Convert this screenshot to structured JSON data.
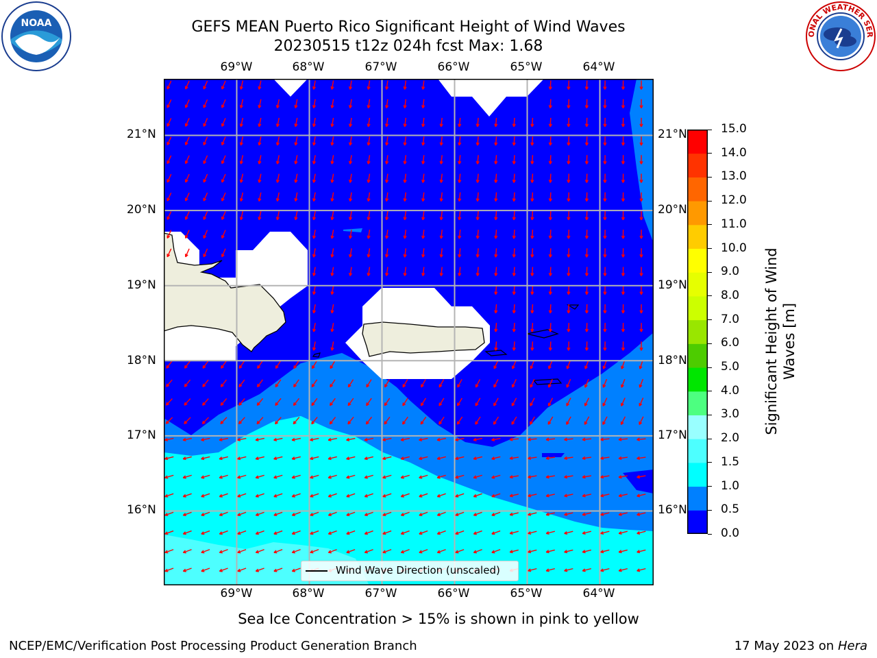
{
  "header": {
    "title_line1": "GEFS MEAN Puerto Rico Significant Height of Wind Waves",
    "title_line2": "20230515 t12z 024h fcst   Max: 1.68"
  },
  "logos": {
    "noaa_text": "NOAA",
    "nws_text": "NATIONAL WEATHER SERVICE"
  },
  "map": {
    "lon_labels": [
      "69°W",
      "68°W",
      "67°W",
      "66°W",
      "65°W",
      "64°W"
    ],
    "lat_labels": [
      "21°N",
      "20°N",
      "19°N",
      "18°N",
      "17°N",
      "16°N"
    ],
    "legend_label": "Wind Wave Direction (unscaled)",
    "colors": {
      "ocean_low": "#0000ff",
      "band_0_5": "#0080ff",
      "band_1_0": "#00ffff",
      "band_1_5": "#4dffff",
      "land": "#eeeedd",
      "arrow": "#ff0000",
      "grid": "#b4b4b4"
    }
  },
  "colorbar": {
    "label": "Significant Height of Wind Waves [m]",
    "ticks": [
      "0.0",
      "0.5",
      "1.0",
      "1.5",
      "2.0",
      "3.0",
      "4.0",
      "5.0",
      "6.0",
      "7.0",
      "8.0",
      "9.0",
      "10.0",
      "11.0",
      "12.0",
      "13.0",
      "14.0",
      "15.0"
    ],
    "colors": [
      "#0000ff",
      "#0080ff",
      "#00ffff",
      "#4dffff",
      "#99ffff",
      "#4dff80",
      "#00e600",
      "#4dcc00",
      "#99e600",
      "#ccff00",
      "#e6ff00",
      "#ffff00",
      "#ffcc00",
      "#ff9900",
      "#ff6600",
      "#ff3300",
      "#ff0000"
    ]
  },
  "footer": {
    "subtitle": "Sea Ice Concentration > 15% is shown in pink to yellow",
    "branch": "NCEP/EMC/Verification Post Processing Product Generation Branch",
    "date": "17 May 2023 on",
    "machine": "Hera"
  }
}
